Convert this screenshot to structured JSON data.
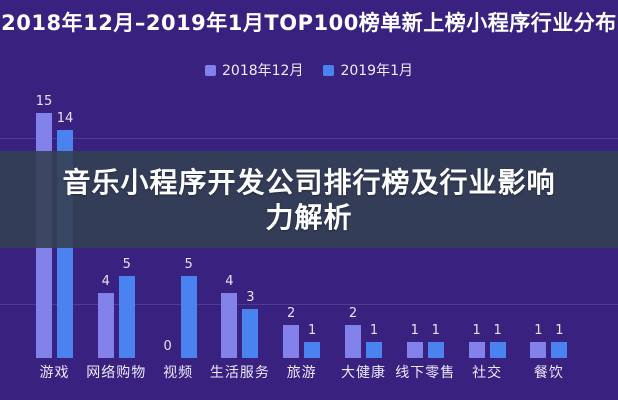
{
  "page": {
    "title": "2018年12月–2019年1月TOP100榜单新上榜小程序行业分布"
  },
  "overlay": {
    "line1": "音乐小程序开发公司排行榜及行业影响",
    "line2": "力解析"
  },
  "chart_data": {
    "type": "bar",
    "title": "2018年12月–2019年1月TOP100榜单新上榜小程序行业分布",
    "categories": [
      "游戏",
      "网络购物",
      "视频",
      "生活服务",
      "旅游",
      "大健康",
      "线下零售",
      "社交",
      "餐饮"
    ],
    "series": [
      {
        "name": "2018年12月",
        "color": "#8280e9",
        "values": [
          15,
          4,
          0,
          4,
          2,
          2,
          1,
          1,
          1
        ]
      },
      {
        "name": "2019年1月",
        "color": "#4a82ef",
        "values": [
          14,
          5,
          5,
          3,
          1,
          1,
          1,
          1,
          1
        ]
      }
    ],
    "xlabel": "",
    "ylabel": "",
    "ylim": [
      0,
      16
    ],
    "grid": "faint-horizontal",
    "legend_position": "top-center",
    "data_labels": true
  },
  "colors": {
    "background": "#38217f",
    "overlay_band": "rgba(52,64,84,0.9)",
    "gridline": "rgba(255,255,255,0.13)",
    "title_text": "#ffffff",
    "label_text": "#ece9fa"
  }
}
